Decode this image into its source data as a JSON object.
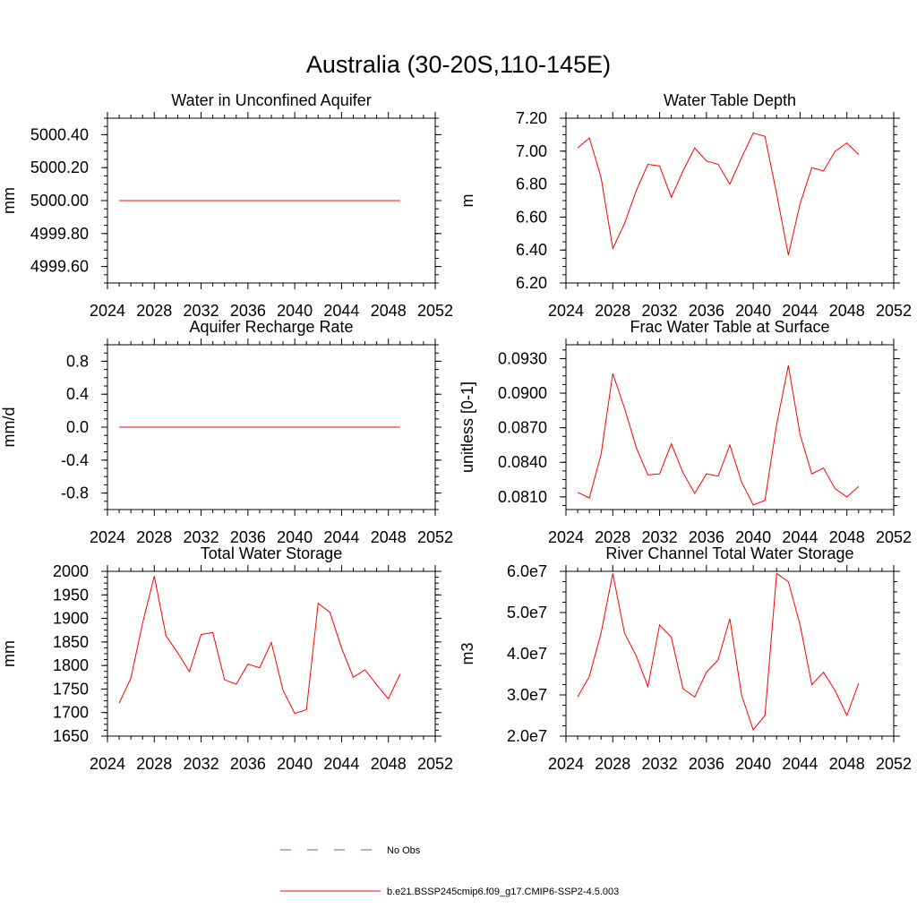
{
  "page_title": "Australia (30-20S,110-145E)",
  "colors": {
    "model": "#ff0000",
    "obs": "#6060c0",
    "axis": "#000000"
  },
  "legend": {
    "obs_label": "No Obs",
    "model_label": "b.e21.BSSP245cmip6.f09_g17.CMIP6-SSP2-4.5.003"
  },
  "chart_data": [
    {
      "type": "line",
      "title": "Water in Unconfined Aquifer",
      "xlabel": "",
      "ylabel": "mm",
      "xlim": [
        2024,
        2052
      ],
      "ylim": [
        4999.5,
        5000.5
      ],
      "x_ticks": [
        "2024",
        "2028",
        "2032",
        "2036",
        "2040",
        "2044",
        "2048",
        "2052"
      ],
      "y_ticks": [
        {
          "v": 4999.6,
          "label": "4999.60"
        },
        {
          "v": 4999.8,
          "label": "4999.80"
        },
        {
          "v": 5000.0,
          "label": "5000.00"
        },
        {
          "v": 5000.2,
          "label": "5000.20"
        },
        {
          "v": 5000.4,
          "label": "5000.40"
        }
      ],
      "x": [
        2025,
        2026,
        2027,
        2028,
        2029,
        2030,
        2031,
        2032,
        2033,
        2034,
        2035,
        2036,
        2037,
        2038,
        2039,
        2040,
        2041,
        2042,
        2043,
        2044,
        2045,
        2046,
        2047,
        2048,
        2049
      ],
      "series": [
        {
          "name": "b.e21.BSSP245cmip6.f09_g17.CMIP6-SSP2-4.5.003",
          "values": [
            5000,
            5000,
            5000,
            5000,
            5000,
            5000,
            5000,
            5000,
            5000,
            5000,
            5000,
            5000,
            5000,
            5000,
            5000,
            5000,
            5000,
            5000,
            5000,
            5000,
            5000,
            5000,
            5000,
            5000,
            5000
          ]
        }
      ]
    },
    {
      "type": "line",
      "title": "Water Table Depth",
      "xlabel": "",
      "ylabel": "m",
      "xlim": [
        2024,
        2052
      ],
      "ylim": [
        6.2,
        7.2
      ],
      "x_ticks": [
        "2024",
        "2028",
        "2032",
        "2036",
        "2040",
        "2044",
        "2048",
        "2052"
      ],
      "y_ticks": [
        {
          "v": 6.2,
          "label": "6.20"
        },
        {
          "v": 6.4,
          "label": "6.40"
        },
        {
          "v": 6.6,
          "label": "6.60"
        },
        {
          "v": 6.8,
          "label": "6.80"
        },
        {
          "v": 7.0,
          "label": "7.00"
        },
        {
          "v": 7.2,
          "label": "7.20"
        }
      ],
      "x": [
        2025,
        2026,
        2027,
        2028,
        2029,
        2030,
        2031,
        2032,
        2033,
        2034,
        2035,
        2036,
        2037,
        2038,
        2039,
        2040,
        2041,
        2042,
        2043,
        2044,
        2045,
        2046,
        2047,
        2048,
        2049
      ],
      "series": [
        {
          "name": "b.e21.BSSP245cmip6.f09_g17.CMIP6-SSP2-4.5.003",
          "values": [
            7.02,
            7.08,
            6.84,
            6.41,
            6.56,
            6.76,
            6.92,
            6.91,
            6.72,
            6.88,
            7.02,
            6.94,
            6.92,
            6.8,
            6.96,
            7.11,
            7.09,
            6.74,
            6.37,
            6.68,
            6.9,
            6.88,
            7.0,
            7.05,
            6.98
          ]
        }
      ]
    },
    {
      "type": "line",
      "title": "Aquifer Recharge Rate",
      "xlabel": "",
      "ylabel": "mm/d",
      "xlim": [
        2024,
        2052
      ],
      "ylim": [
        -1.0,
        1.0
      ],
      "x_ticks": [
        "2024",
        "2028",
        "2032",
        "2036",
        "2040",
        "2044",
        "2048",
        "2052"
      ],
      "y_ticks": [
        {
          "v": -0.8,
          "label": "-0.8"
        },
        {
          "v": -0.4,
          "label": "-0.4"
        },
        {
          "v": 0.0,
          "label": "0.0"
        },
        {
          "v": 0.4,
          "label": "0.4"
        },
        {
          "v": 0.8,
          "label": "0.8"
        }
      ],
      "x": [
        2025,
        2026,
        2027,
        2028,
        2029,
        2030,
        2031,
        2032,
        2033,
        2034,
        2035,
        2036,
        2037,
        2038,
        2039,
        2040,
        2041,
        2042,
        2043,
        2044,
        2045,
        2046,
        2047,
        2048,
        2049
      ],
      "series": [
        {
          "name": "b.e21.BSSP245cmip6.f09_g17.CMIP6-SSP2-4.5.003",
          "values": [
            0,
            0,
            0,
            0,
            0,
            0,
            0,
            0,
            0,
            0,
            0,
            0,
            0,
            0,
            0,
            0,
            0,
            0,
            0,
            0,
            0,
            0,
            0,
            0,
            0
          ]
        }
      ]
    },
    {
      "type": "line",
      "title": "Frac Water Table at Surface",
      "xlabel": "",
      "ylabel": "unitless [0-1]",
      "xlim": [
        2024,
        2052
      ],
      "ylim": [
        0.0799,
        0.0942
      ],
      "x_ticks": [
        "2024",
        "2028",
        "2032",
        "2036",
        "2040",
        "2044",
        "2048",
        "2052"
      ],
      "y_ticks": [
        {
          "v": 0.081,
          "label": "0.0810"
        },
        {
          "v": 0.084,
          "label": "0.0840"
        },
        {
          "v": 0.087,
          "label": "0.0870"
        },
        {
          "v": 0.09,
          "label": "0.0900"
        },
        {
          "v": 0.093,
          "label": "0.0930"
        }
      ],
      "x": [
        2025,
        2026,
        2027,
        2028,
        2029,
        2030,
        2031,
        2032,
        2033,
        2034,
        2035,
        2036,
        2037,
        2038,
        2039,
        2040,
        2041,
        2042,
        2043,
        2044,
        2045,
        2046,
        2047,
        2048,
        2049
      ],
      "series": [
        {
          "name": "b.e21.BSSP245cmip6.f09_g17.CMIP6-SSP2-4.5.003",
          "values": [
            0.0814,
            0.0809,
            0.0847,
            0.0917,
            0.0887,
            0.0853,
            0.0829,
            0.083,
            0.0856,
            0.0831,
            0.0813,
            0.083,
            0.0828,
            0.0855,
            0.0823,
            0.0803,
            0.0807,
            0.0873,
            0.0924,
            0.0864,
            0.083,
            0.0835,
            0.0817,
            0.081,
            0.0819
          ]
        }
      ]
    },
    {
      "type": "line",
      "title": "Total Water Storage",
      "xlabel": "",
      "ylabel": "mm",
      "xlim": [
        2024,
        2052
      ],
      "ylim": [
        1650,
        2000
      ],
      "x_ticks": [
        "2024",
        "2028",
        "2032",
        "2036",
        "2040",
        "2044",
        "2048",
        "2052"
      ],
      "y_ticks": [
        {
          "v": 1650,
          "label": "1650"
        },
        {
          "v": 1700,
          "label": "1700"
        },
        {
          "v": 1750,
          "label": "1750"
        },
        {
          "v": 1800,
          "label": "1800"
        },
        {
          "v": 1850,
          "label": "1850"
        },
        {
          "v": 1900,
          "label": "1900"
        },
        {
          "v": 1950,
          "label": "1950"
        },
        {
          "v": 2000,
          "label": "2000"
        }
      ],
      "x": [
        2025,
        2026,
        2027,
        2028,
        2029,
        2030,
        2031,
        2032,
        2033,
        2034,
        2035,
        2036,
        2037,
        2038,
        2039,
        2040,
        2041,
        2042,
        2043,
        2044,
        2045,
        2046,
        2047,
        2048,
        2049
      ],
      "series": [
        {
          "name": "b.e21.BSSP245cmip6.f09_g17.CMIP6-SSP2-4.5.003",
          "values": [
            1720,
            1773,
            1890,
            1990,
            1863,
            1827,
            1787,
            1866,
            1870,
            1770,
            1760,
            1803,
            1795,
            1849,
            1747,
            1698,
            1706,
            1932,
            1913,
            1837,
            1775,
            1791,
            1759,
            1729,
            1782
          ]
        }
      ]
    },
    {
      "type": "line",
      "title": "River Channel Total Water Storage",
      "xlabel": "",
      "ylabel": "m3",
      "xlim": [
        2024,
        2052
      ],
      "ylim": [
        20000000,
        60000000
      ],
      "x_ticks": [
        "2024",
        "2028",
        "2032",
        "2036",
        "2040",
        "2044",
        "2048",
        "2052"
      ],
      "y_ticks": [
        {
          "v": 20000000,
          "label": "2.0e7"
        },
        {
          "v": 30000000,
          "label": "3.0e7"
        },
        {
          "v": 40000000,
          "label": "4.0e7"
        },
        {
          "v": 50000000,
          "label": "5.0e7"
        },
        {
          "v": 60000000,
          "label": "6.0e7"
        }
      ],
      "x": [
        2025,
        2026,
        2027,
        2028,
        2029,
        2030,
        2031,
        2032,
        2033,
        2034,
        2035,
        2036,
        2037,
        2038,
        2039,
        2040,
        2041,
        2042,
        2043,
        2044,
        2045,
        2046,
        2047,
        2048,
        2049
      ],
      "series": [
        {
          "name": "b.e21.BSSP245cmip6.f09_g17.CMIP6-SSP2-4.5.003",
          "values": [
            29500000,
            34500000,
            45000000,
            59500000,
            45000000,
            39500000,
            32000000,
            47000000,
            44000000,
            31500000,
            29500000,
            35500000,
            38500000,
            48500000,
            30000000,
            21500000,
            25000000,
            59500000,
            57500000,
            47000000,
            32500000,
            35500000,
            31000000,
            25000000,
            32800000
          ]
        }
      ]
    }
  ]
}
